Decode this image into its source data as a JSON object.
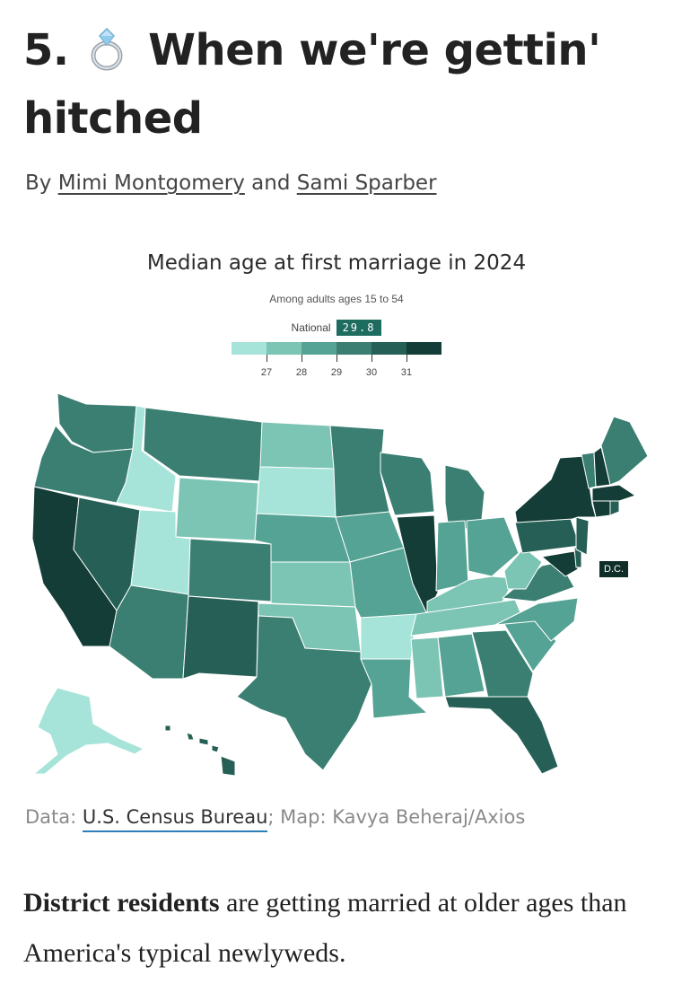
{
  "headline": {
    "number": "5.",
    "icon": "ring-icon",
    "text": "When we're gettin' hitched"
  },
  "byline": {
    "prefix": "By",
    "author1": "Mimi Montgomery",
    "conjunction": "and",
    "author2": "Sami Sparber"
  },
  "map": {
    "title": "Median age at first marriage in 2024",
    "subtitle": "Among adults ages 15 to 54",
    "national_label": "National",
    "national_value": "29.8",
    "legend_colors": [
      "#a6e3d8",
      "#7cc4b4",
      "#55a394",
      "#3a7f72",
      "#255f55",
      "#133d36"
    ],
    "legend_ticks": [
      "27",
      "28",
      "29",
      "30",
      "31"
    ],
    "dc_label": "D.C."
  },
  "credit": {
    "data_prefix": "Data:",
    "data_source": "U.S. Census Bureau",
    "separator": ";",
    "map_credit": "Map: Kavya Beheraj/Axios"
  },
  "article": {
    "lead_bold": "District residents",
    "lead_rest": "are getting married at older ages than America's typical newlyweds."
  }
}
